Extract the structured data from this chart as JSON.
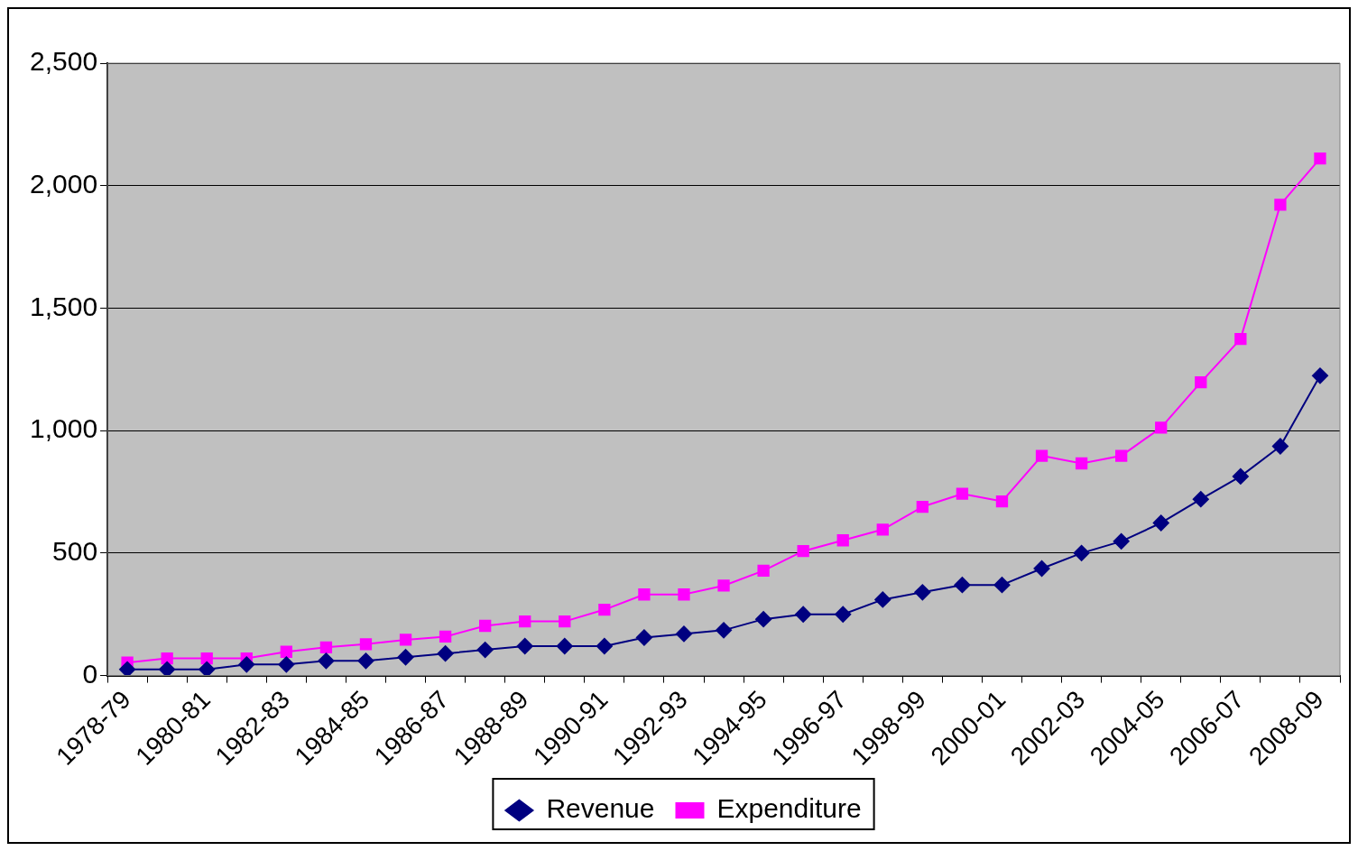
{
  "chart_data": {
    "type": "line",
    "categories": [
      "1978-79",
      null,
      "1980-81",
      null,
      "1982-83",
      null,
      "1984-85",
      null,
      "1986-87",
      null,
      "1988-89",
      null,
      "1990-91",
      null,
      "1992-93",
      null,
      "1994-95",
      null,
      "1996-97",
      null,
      "1998-99",
      null,
      "2000-01",
      null,
      "2002-03",
      null,
      "2004-05",
      null,
      "2006-07",
      null,
      "2008-09"
    ],
    "series": [
      {
        "name": "Revenue",
        "color": "#000080",
        "marker": "diamond",
        "values": [
          25,
          25,
          25,
          45,
          45,
          60,
          60,
          75,
          90,
          105,
          120,
          120,
          120,
          155,
          170,
          185,
          230,
          250,
          250,
          310,
          340,
          370,
          370,
          437,
          500,
          548,
          623,
          720,
          813,
          936,
          1224
        ]
      },
      {
        "name": "Expenditure",
        "color": "#ff00ff",
        "marker": "square",
        "values": [
          53,
          70,
          70,
          70,
          97,
          115,
          128,
          146,
          159,
          203,
          221,
          221,
          269,
          331,
          331,
          367,
          428,
          508,
          552,
          596,
          689,
          742,
          711,
          897,
          866,
          897,
          1012,
          1197,
          1374,
          1922,
          2111
        ]
      }
    ],
    "ylim": [
      0,
      2500
    ],
    "yticks": [
      0,
      500,
      {
        "value": 1000,
        "label": "1,000"
      },
      {
        "value": 1500,
        "label": "1,500"
      },
      {
        "value": 2000,
        "label": "2,000"
      },
      {
        "value": 2500,
        "label": "2,500"
      }
    ],
    "grid": "y",
    "legend": "bottom",
    "line_style": "solid"
  }
}
